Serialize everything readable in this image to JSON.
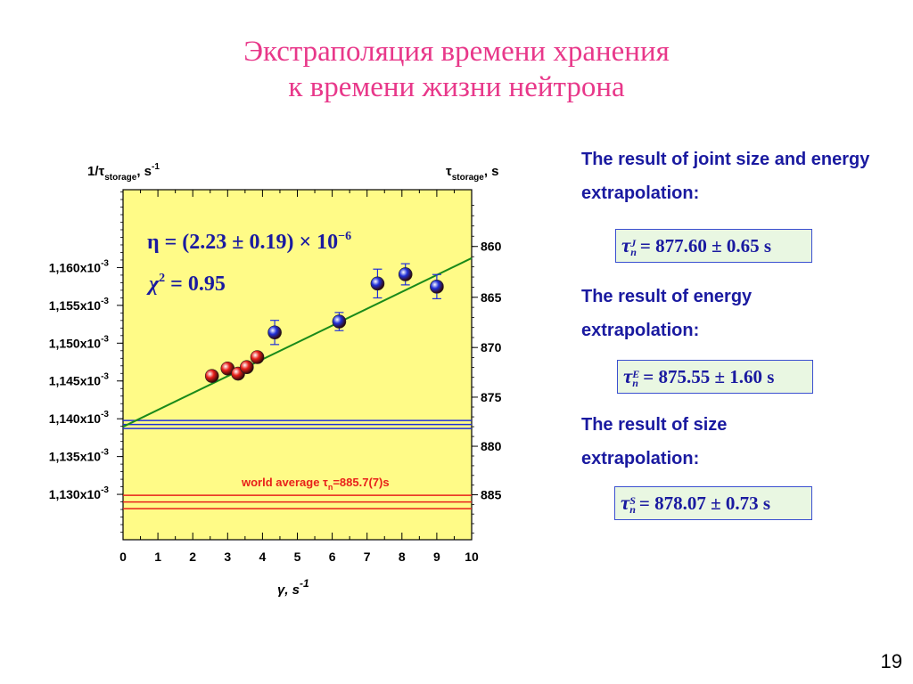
{
  "title": {
    "line1": "Экстраполяция времени хранения",
    "line2": "к времени жизни нейтрона"
  },
  "chart_data": {
    "type": "scatter",
    "xlabel_symbol": "γ",
    "xlabel_rest": ", s",
    "xlabel_sup": "-1",
    "ylabel_left_main": "1/τ",
    "ylabel_left_sub": "storage",
    "ylabel_left_rest": ", s",
    "ylabel_left_sup": "-1",
    "ylabel_right_main": "τ",
    "ylabel_right_sub": "storage",
    "ylabel_right_rest": ", s",
    "xlim": [
      0,
      10
    ],
    "ylim": [
      0.001124,
      0.0011703
    ],
    "x_ticks": [
      0,
      1,
      2,
      3,
      4,
      5,
      6,
      7,
      8,
      9,
      10
    ],
    "y_ticks_left": [
      {
        "value": 0.00116,
        "mantissa": "1,160x10",
        "exp": "-3"
      },
      {
        "value": 0.001155,
        "mantissa": "1,155x10",
        "exp": "-3"
      },
      {
        "value": 0.00115,
        "mantissa": "1,150x10",
        "exp": "-3"
      },
      {
        "value": 0.001145,
        "mantissa": "1,145x10",
        "exp": "-3"
      },
      {
        "value": 0.00114,
        "mantissa": "1,140x10",
        "exp": "-3"
      },
      {
        "value": 0.001135,
        "mantissa": "1,135x10",
        "exp": "-3"
      },
      {
        "value": 0.00113,
        "mantissa": "1,130x10",
        "exp": "-3"
      }
    ],
    "y_ticks_right": [
      {
        "tau": 860,
        "label": "860"
      },
      {
        "tau": 865,
        "label": "865"
      },
      {
        "tau": 870,
        "label": "870"
      },
      {
        "tau": 875,
        "label": "875"
      },
      {
        "tau": 880,
        "label": "880"
      },
      {
        "tau": 885,
        "label": "885"
      }
    ],
    "series": [
      {
        "color": "#e8201a",
        "points": [
          {
            "x": 2.55,
            "y": 0.00114566,
            "err": 6e-07
          },
          {
            "x": 3.0,
            "y": 0.00114665,
            "err": 6e-07
          },
          {
            "x": 3.3,
            "y": 0.00114597,
            "err": 6e-07
          },
          {
            "x": 3.55,
            "y": 0.00114683,
            "err": 6e-07
          },
          {
            "x": 3.85,
            "y": 0.00114815,
            "err": 4e-07
          }
        ]
      },
      {
        "color": "#2030d8",
        "points": [
          {
            "x": 4.35,
            "y": 0.00115142,
            "err": 1.6e-06
          },
          {
            "x": 6.2,
            "y": 0.00115286,
            "err": 1.2e-06
          },
          {
            "x": 7.3,
            "y": 0.00115789,
            "err": 1.9e-06
          },
          {
            "x": 8.1,
            "y": 0.00115911,
            "err": 1.4e-06
          },
          {
            "x": 9.0,
            "y": 0.00115748,
            "err": 1.6e-06
          }
        ]
      }
    ],
    "fit_line": {
      "x": [
        0,
        10
      ],
      "y": [
        0.00113894,
        0.00116125
      ],
      "color": "#1a8a1a"
    },
    "bands": [
      {
        "center": 0.00113924,
        "half": 5.3e-07,
        "color": "#2030d8"
      },
      {
        "center": 0.00112899,
        "half": 8.8e-07,
        "color": "#e8201a"
      }
    ],
    "annotations": {
      "eta": "η = (2.23 ± 0.19) × 10",
      "eta_exp": "−6",
      "chi": "χ",
      "chi_sup": "2",
      "chi_rest": " = 0.95",
      "world_average_prefix": "world average τ",
      "world_average_sub": "n",
      "world_average_rest": "=885.7(7)s"
    },
    "plot_background": "#fffb87"
  },
  "side_panel": {
    "joint_text": "The result of joint size and energy extrapolation:",
    "joint_formula": {
      "sup": "J",
      "value": "= 877.60 ± 0.65 s"
    },
    "energy_text": "The result of energy extrapolation:",
    "energy_formula": {
      "sup": "E",
      "value": "= 875.55 ± 1.60 s"
    },
    "size_text": "The result of size extrapolation:",
    "size_formula": {
      "sup": "S",
      "value": "= 878.07 ± 0.73 s"
    },
    "tau_symbol": "τ",
    "sub_n": "n"
  },
  "page_number": "19"
}
